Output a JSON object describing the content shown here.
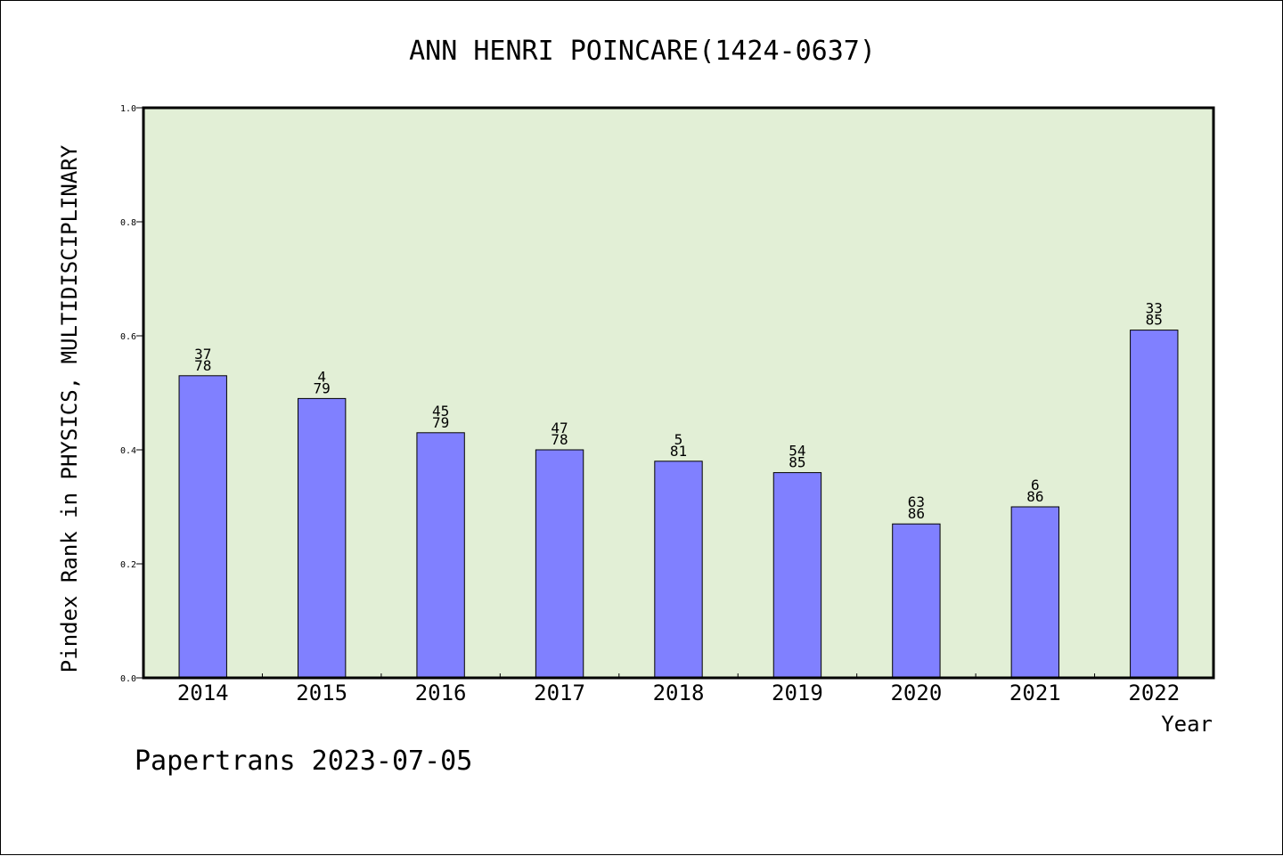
{
  "chart_data": {
    "type": "bar",
    "title": "ANN HENRI POINCARE(1424-0637)",
    "xlabel": "Year",
    "ylabel": "Pindex Rank in PHYSICS, MULTIDISCIPLINARY",
    "categories": [
      "2014",
      "2015",
      "2016",
      "2017",
      "2018",
      "2019",
      "2020",
      "2021",
      "2022"
    ],
    "values": [
      0.53,
      0.49,
      0.43,
      0.4,
      0.38,
      0.36,
      0.27,
      0.3,
      0.61
    ],
    "bar_labels": [
      [
        "37",
        "78"
      ],
      [
        "4",
        "79"
      ],
      [
        "45",
        "79"
      ],
      [
        "47",
        "78"
      ],
      [
        "5",
        "81"
      ],
      [
        "54",
        "85"
      ],
      [
        "63",
        "86"
      ],
      [
        "6",
        "86"
      ],
      [
        "33",
        "85"
      ]
    ],
    "ylim": [
      0.0,
      1.0
    ],
    "yticks": [
      "0.0",
      "0.2",
      "0.4",
      "0.6",
      "0.8",
      "1.0"
    ],
    "grid": false,
    "colors": {
      "plot_background": "#e2efd6",
      "bar_fill": "#8080ff",
      "bar_stroke": "#000000"
    }
  },
  "footer": "Papertrans 2023-07-05"
}
